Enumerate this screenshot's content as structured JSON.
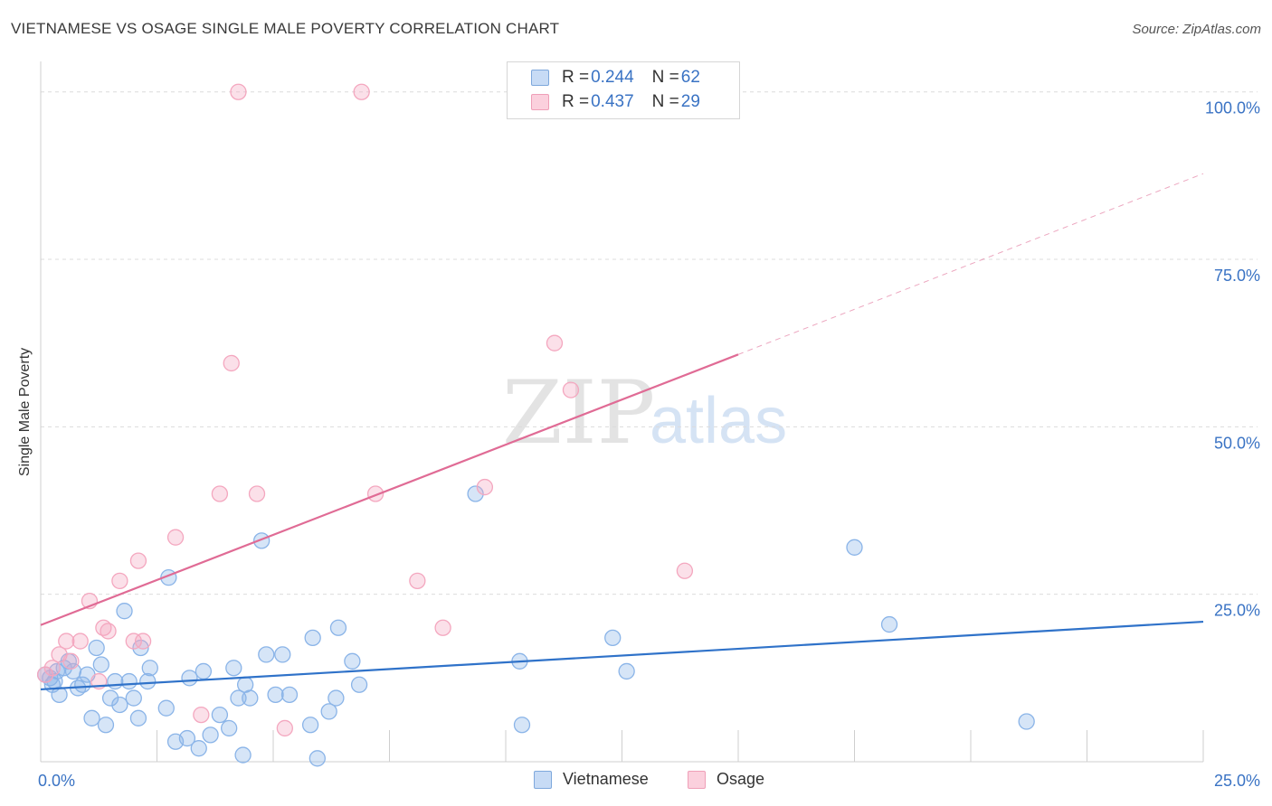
{
  "chart_data": {
    "type": "scatter",
    "title": "VIETNAMESE VS OSAGE SINGLE MALE POVERTY CORRELATION CHART",
    "source": "Source: ZipAtlas.com",
    "ylabel": "Single Male Poverty",
    "xlim": [
      0,
      25
    ],
    "ylim": [
      0,
      100
    ],
    "x_tick_labels": [
      "0.0%",
      "25.0%"
    ],
    "y_ticks": [
      {
        "value": 100,
        "label": "100.0%"
      },
      {
        "value": 75,
        "label": "75.0%"
      },
      {
        "value": 50,
        "label": "50.0%"
      },
      {
        "value": 25,
        "label": "25.0%"
      }
    ],
    "watermark": {
      "part1": "ZIP",
      "part2": "atlas"
    },
    "legend": [
      {
        "r_label": "R = ",
        "r_value": "0.244",
        "n_label": "N = ",
        "n_value": "62"
      },
      {
        "r_label": "R = ",
        "r_value": "0.437",
        "n_label": "N = ",
        "n_value": "29"
      }
    ],
    "series": [
      {
        "name": "Vietnamese",
        "color": "#8ab4e8",
        "line_color": "#2f72c9",
        "trend": {
          "x0": 0,
          "y0": 10.8,
          "x1": 25,
          "y1": 20.9
        },
        "points": [
          [
            0.1,
            13
          ],
          [
            0.2,
            12.5
          ],
          [
            0.25,
            11.5
          ],
          [
            0.3,
            12
          ],
          [
            0.35,
            13.5
          ],
          [
            0.4,
            10
          ],
          [
            0.5,
            14
          ],
          [
            0.6,
            15
          ],
          [
            0.7,
            13.5
          ],
          [
            0.8,
            11
          ],
          [
            0.9,
            11.5
          ],
          [
            1.0,
            13
          ],
          [
            1.1,
            6.5
          ],
          [
            1.2,
            17
          ],
          [
            1.3,
            14.5
          ],
          [
            1.4,
            5.5
          ],
          [
            1.5,
            9.5
          ],
          [
            1.6,
            12
          ],
          [
            1.7,
            8.5
          ],
          [
            1.8,
            22.5
          ],
          [
            1.9,
            12
          ],
          [
            2.0,
            9.5
          ],
          [
            2.1,
            6.5
          ],
          [
            2.15,
            17
          ],
          [
            2.3,
            12
          ],
          [
            2.35,
            14
          ],
          [
            2.7,
            8
          ],
          [
            2.75,
            27.5
          ],
          [
            2.9,
            3
          ],
          [
            3.15,
            3.5
          ],
          [
            3.2,
            12.5
          ],
          [
            3.4,
            2
          ],
          [
            3.5,
            13.5
          ],
          [
            3.65,
            4
          ],
          [
            3.85,
            7
          ],
          [
            4.05,
            5
          ],
          [
            4.15,
            14
          ],
          [
            4.25,
            9.5
          ],
          [
            4.35,
            1
          ],
          [
            4.4,
            11.5
          ],
          [
            4.5,
            9.5
          ],
          [
            4.75,
            33
          ],
          [
            4.85,
            16
          ],
          [
            5.05,
            10
          ],
          [
            5.2,
            16
          ],
          [
            5.35,
            10
          ],
          [
            5.8,
            5.5
          ],
          [
            5.85,
            18.5
          ],
          [
            5.95,
            0.5
          ],
          [
            6.2,
            7.5
          ],
          [
            6.35,
            9.5
          ],
          [
            6.4,
            20
          ],
          [
            6.7,
            15
          ],
          [
            6.85,
            11.5
          ],
          [
            9.35,
            40
          ],
          [
            10.3,
            15
          ],
          [
            10.35,
            5.5
          ],
          [
            12.3,
            18.5
          ],
          [
            12.6,
            13.5
          ],
          [
            17.5,
            32
          ],
          [
            18.25,
            20.5
          ],
          [
            21.2,
            6
          ]
        ]
      },
      {
        "name": "Osage",
        "color": "#f4a7bf",
        "line_color": "#e06b95",
        "trend": {
          "x0": 0,
          "y0": 20.4,
          "x1": 15,
          "y1": 60.8
        },
        "trend_ext": {
          "x0": 15,
          "y0": 60.8,
          "x1": 25,
          "y1": 87.8
        },
        "points": [
          [
            0.1,
            13
          ],
          [
            0.25,
            14
          ],
          [
            0.4,
            16
          ],
          [
            0.55,
            18
          ],
          [
            0.65,
            15
          ],
          [
            0.85,
            18
          ],
          [
            1.05,
            24
          ],
          [
            1.25,
            12
          ],
          [
            1.35,
            20
          ],
          [
            1.45,
            19.5
          ],
          [
            1.7,
            27
          ],
          [
            2.0,
            18
          ],
          [
            2.1,
            30
          ],
          [
            2.2,
            18
          ],
          [
            2.9,
            33.5
          ],
          [
            3.45,
            7
          ],
          [
            3.85,
            40
          ],
          [
            4.1,
            59.5
          ],
          [
            4.25,
            100
          ],
          [
            4.65,
            40
          ],
          [
            5.25,
            5
          ],
          [
            6.9,
            100
          ],
          [
            7.2,
            40
          ],
          [
            8.1,
            27
          ],
          [
            8.65,
            20
          ],
          [
            9.55,
            41
          ],
          [
            11.05,
            62.5
          ],
          [
            11.4,
            55.5
          ],
          [
            13.85,
            28.5
          ]
        ]
      }
    ]
  }
}
